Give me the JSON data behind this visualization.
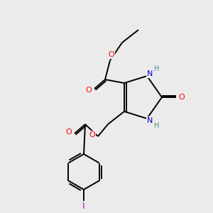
{
  "bg_color": "#ebebeb",
  "bond_color": "#000000",
  "atom_colors": {
    "O": "#ff0000",
    "N": "#0000cd",
    "NH": "#4a9090",
    "I": "#cc00cc",
    "C": "#000000"
  },
  "figsize": [
    3.0,
    3.0
  ],
  "dpi": 100
}
